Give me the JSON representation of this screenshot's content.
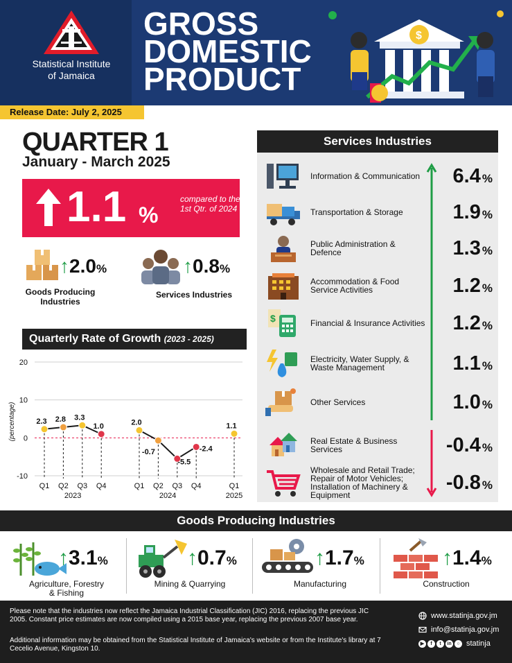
{
  "header": {
    "org_name_line1": "Statistical Institute",
    "org_name_line2": "of Jamaica",
    "title_line1": "GROSS",
    "title_line2": "DOMESTIC",
    "title_line3": "PRODUCT",
    "release_date": "Release Date: July 2, 2025"
  },
  "summary": {
    "quarter": "QUARTER 1",
    "period": "January - March 2025",
    "headline_value": "1.1",
    "headline_unit": "%",
    "headline_compare": "compared to the 1st Qtr. of 2024",
    "goods": {
      "value": "2.0",
      "unit": "%",
      "label_line1": "Goods Producing",
      "label_line2": "Industries"
    },
    "services": {
      "value": "0.8",
      "unit": "%",
      "label": "Services Industries"
    }
  },
  "chart_title": {
    "main": "Quarterly Rate of Growth",
    "years": "(2023 - 2025)"
  },
  "chart_data": {
    "type": "line",
    "title": "Quarterly Rate of Growth (2023 - 2025)",
    "ylabel": "(percentage)",
    "ylim": [
      -10,
      20
    ],
    "yticks": [
      "20",
      "10",
      "0",
      "-10"
    ],
    "grid": true,
    "series": [
      {
        "group": "2023",
        "x": [
          "Q1",
          "Q2",
          "Q3",
          "Q4"
        ],
        "values": [
          2.3,
          2.8,
          3.3,
          1.0
        ],
        "labels": [
          "2.3",
          "2.8",
          "3.3",
          "1.0"
        ]
      },
      {
        "group": "2024",
        "x": [
          "Q1",
          "Q2",
          "Q3",
          "Q4"
        ],
        "values": [
          2.0,
          -0.7,
          -5.5,
          -2.4
        ],
        "labels": [
          "2.0",
          "-0.7",
          "-5.5",
          "-2.4"
        ]
      },
      {
        "group": "2025",
        "x": [
          "Q1"
        ],
        "values": [
          1.1
        ],
        "labels": [
          "1.1"
        ]
      }
    ]
  },
  "services_panel": {
    "heading": "Services Industries",
    "items": [
      {
        "name": "Information & Communication",
        "value": "6.4",
        "unit": "%",
        "icon": "computer-icon"
      },
      {
        "name": "Transportation & Storage",
        "value": "1.9",
        "unit": "%",
        "icon": "truck-icon"
      },
      {
        "name": "Public Administration & Defence",
        "value": "1.3",
        "unit": "%",
        "icon": "official-icon"
      },
      {
        "name": "Accommodation & Food Service Activities",
        "value": "1.2",
        "unit": "%",
        "icon": "hotel-icon"
      },
      {
        "name": "Financial & Insurance Activities",
        "value": "1.2",
        "unit": "%",
        "icon": "calculator-icon"
      },
      {
        "name": "Electricity, Water Supply, & Waste Management",
        "value": "1.1",
        "unit": "%",
        "icon": "utilities-icon"
      },
      {
        "name": "Other Services",
        "value": "1.0",
        "unit": "%",
        "icon": "service-box-icon"
      },
      {
        "name": "Real Estate & Business Services",
        "value": "-0.4",
        "unit": "%",
        "icon": "houses-icon"
      },
      {
        "name": "Wholesale and Retail Trade; Repair of Motor Vehicles; Installation of Machinery & Equipment",
        "value": "-0.8",
        "unit": "%",
        "icon": "shopping-cart-icon"
      }
    ]
  },
  "goods_panel": {
    "heading": "Goods Producing Industries",
    "items": [
      {
        "name_line1": "Agriculture, Forestry",
        "name_line2": "& Fishing",
        "value": "3.1",
        "unit": "%",
        "icon": "agriculture-icon"
      },
      {
        "name_line1": "Mining & Quarrying",
        "name_line2": "",
        "value": "0.7",
        "unit": "%",
        "icon": "loader-icon"
      },
      {
        "name_line1": "Manufacturing",
        "name_line2": "",
        "value": "1.7",
        "unit": "%",
        "icon": "conveyor-icon"
      },
      {
        "name_line1": "Construction",
        "name_line2": "",
        "value": "1.4",
        "unit": "%",
        "icon": "bricks-icon"
      }
    ]
  },
  "footer": {
    "note": "Please note that the industries now reflect the Jamaica Industrial Classification (JIC) 2016, replacing the previous JIC 2005. Constant price estimates are now compiled using a 2015 base year, replacing the previous 2007 base year.",
    "additional": "Additional information may be obtained from the Statistical Institute of Jamaica's website or from the Institute's library at 7 Cecelio Avenue, Kingston 10.",
    "website": "www.statinja.gov.jm",
    "email": "info@statinja.gov.jm",
    "social": "statinja"
  },
  "colors": {
    "header_bg": "#1c3a73",
    "accent_red": "#e8194a",
    "positive_green": "#1f9d46",
    "release_yellow": "#f5c531",
    "chart_marker": "#f5c531",
    "chart_marker_low": "#e0364a"
  }
}
